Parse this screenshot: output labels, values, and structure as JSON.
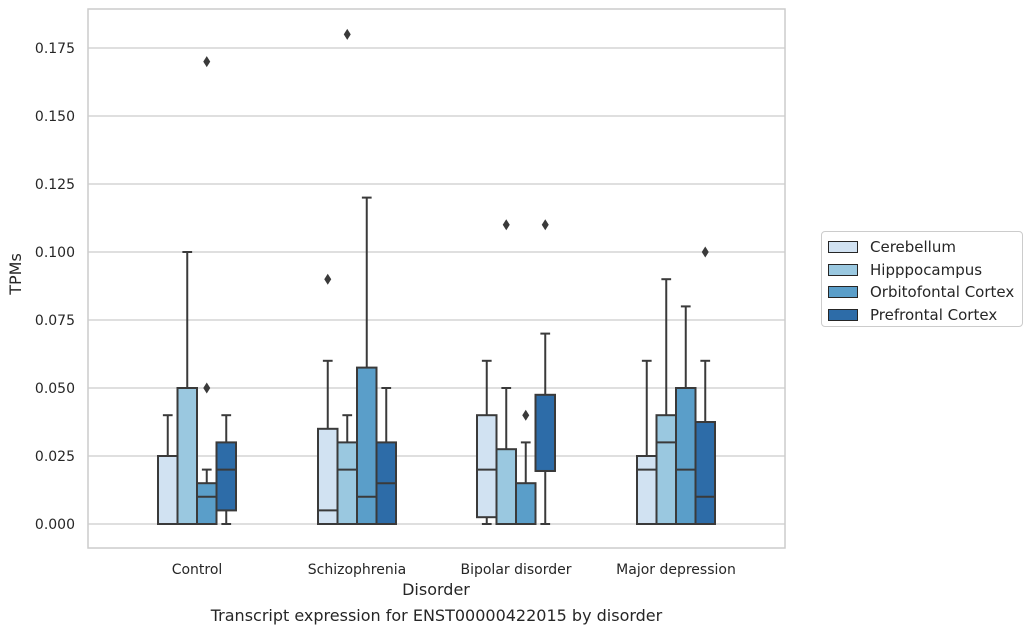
{
  "chart_data": {
    "type": "box",
    "categories": [
      "Control",
      "Schizophrenia",
      "Bipolar disorder",
      "Major depression"
    ],
    "xlabel": "Disorder",
    "ylabel": "TPMs",
    "ylim": [
      -0.009,
      0.189
    ],
    "yticks": [
      "0.000",
      "0.025",
      "0.050",
      "0.075",
      "0.100",
      "0.125",
      "0.150",
      "0.175"
    ],
    "grid": true,
    "legend_position": "right",
    "caption": "Transcript expression for ENST00000422015 by disorder",
    "series": [
      {
        "name": "Cerebellum",
        "color": "#d1e2f2",
        "boxes": [
          {
            "whislo": 0.0,
            "q1": 0.0,
            "med": 0.0,
            "q3": 0.025,
            "whishi": 0.04,
            "fliers": []
          },
          {
            "whislo": 0.0,
            "q1": 0.0,
            "med": 0.005,
            "q3": 0.035,
            "whishi": 0.06,
            "fliers": [
              0.09
            ]
          },
          {
            "whislo": 0.0,
            "q1": 0.0025,
            "med": 0.02,
            "q3": 0.04,
            "whishi": 0.06,
            "fliers": []
          },
          {
            "whislo": 0.0,
            "q1": 0.0,
            "med": 0.02,
            "q3": 0.025,
            "whishi": 0.06,
            "fliers": []
          }
        ]
      },
      {
        "name": "Hipppocampus",
        "color": "#9ac8e0",
        "boxes": [
          {
            "whislo": 0.0,
            "q1": 0.0,
            "med": 0.0,
            "q3": 0.05,
            "whishi": 0.1,
            "fliers": []
          },
          {
            "whislo": 0.0,
            "q1": 0.0,
            "med": 0.02,
            "q3": 0.03,
            "whishi": 0.04,
            "fliers": [
              0.18
            ]
          },
          {
            "whislo": 0.0,
            "q1": 0.0,
            "med": 0.0,
            "q3": 0.0275,
            "whishi": 0.05,
            "fliers": [
              0.11
            ]
          },
          {
            "whislo": 0.0,
            "q1": 0.0,
            "med": 0.03,
            "q3": 0.04,
            "whishi": 0.09,
            "fliers": []
          }
        ]
      },
      {
        "name": "Orbitofontal Cortex",
        "color": "#5a9ec9",
        "boxes": [
          {
            "whislo": 0.0,
            "q1": 0.0,
            "med": 0.01,
            "q3": 0.015,
            "whishi": 0.02,
            "fliers": [
              0.05,
              0.17
            ]
          },
          {
            "whislo": 0.0,
            "q1": 0.0,
            "med": 0.01,
            "q3": 0.0575,
            "whishi": 0.12,
            "fliers": []
          },
          {
            "whislo": 0.0,
            "q1": 0.0,
            "med": 0.0,
            "q3": 0.015,
            "whishi": 0.03,
            "fliers": [
              0.04
            ]
          },
          {
            "whislo": 0.0,
            "q1": 0.0,
            "med": 0.02,
            "q3": 0.05,
            "whishi": 0.08,
            "fliers": []
          }
        ]
      },
      {
        "name": "Prefrontal Cortex",
        "color": "#2d6ca8",
        "boxes": [
          {
            "whislo": 0.0,
            "q1": 0.005,
            "med": 0.02,
            "q3": 0.03,
            "whishi": 0.04,
            "fliers": []
          },
          {
            "whislo": 0.0,
            "q1": 0.0,
            "med": 0.015,
            "q3": 0.03,
            "whishi": 0.05,
            "fliers": []
          },
          {
            "whislo": 0.0,
            "q1": 0.0195,
            "med": 0.0195,
            "q3": 0.0475,
            "whishi": 0.07,
            "fliers": [
              0.11
            ]
          },
          {
            "whislo": 0.0,
            "q1": 0.0,
            "med": 0.01,
            "q3": 0.0375,
            "whishi": 0.06,
            "fliers": [
              0.1
            ]
          }
        ]
      }
    ]
  }
}
